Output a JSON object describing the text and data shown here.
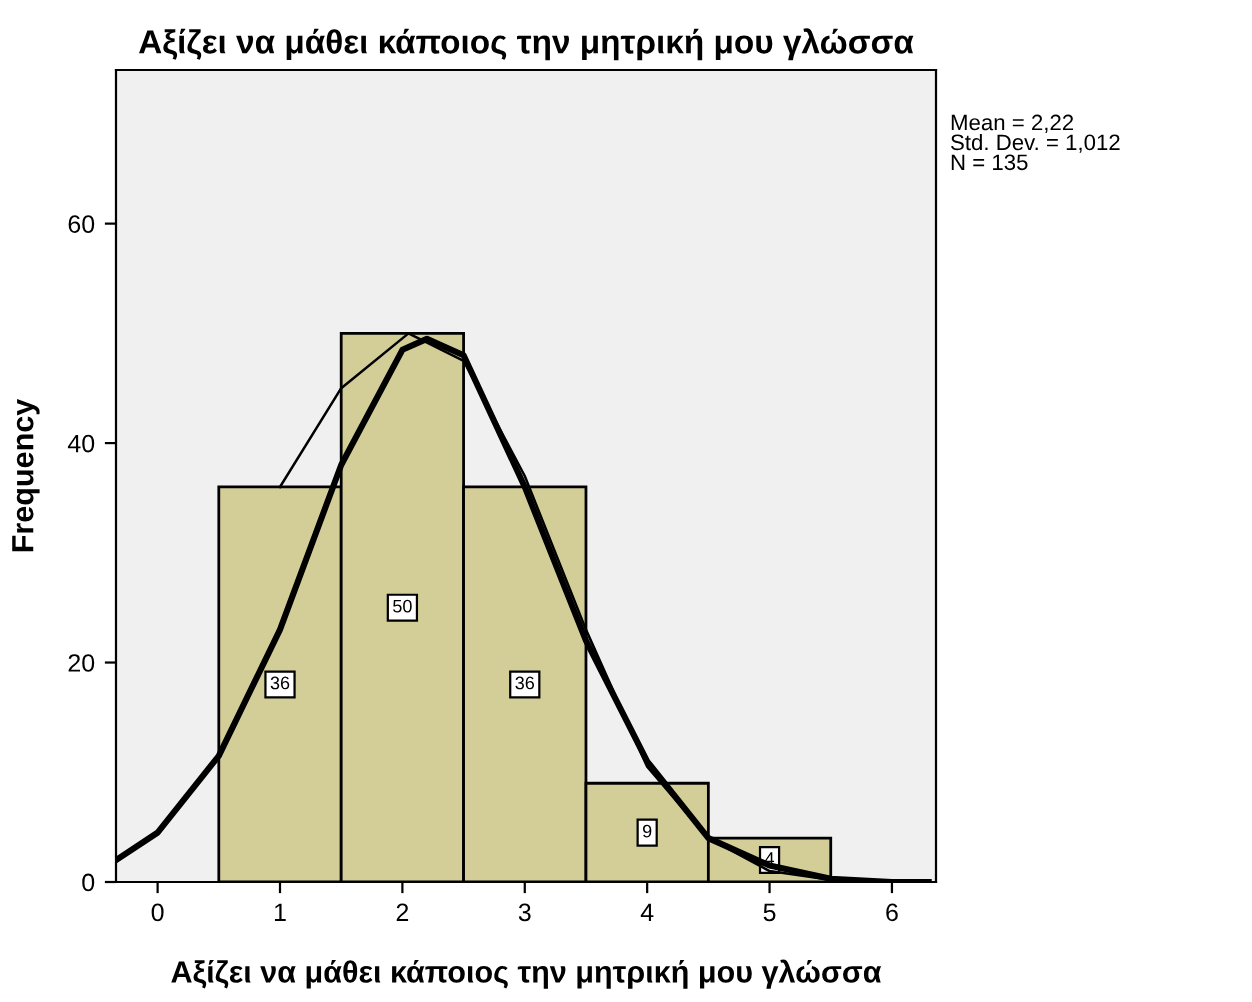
{
  "chart_data": {
    "type": "histogram",
    "title": "Αξίζει να μάθει κάποιος την μητρική μου γλώσσα",
    "xlabel": "Αξίζει να μάθει κάποιος την μητρική μου γλώσσα",
    "ylabel": "Frequency",
    "bins": [
      0.5,
      1.5,
      2.5,
      3.5,
      4.5,
      5.5
    ],
    "values": [
      36,
      50,
      36,
      9,
      4
    ],
    "color": "#d3ce97",
    "value_labels": [
      "36",
      "50",
      "36",
      "9",
      "4"
    ],
    "series": [
      {
        "type": "line",
        "color": "#000000",
        "x": [
          -0.34,
          0,
          0.5,
          1,
          1.5,
          2,
          2.2,
          2.5,
          3,
          3.5,
          4,
          4.5,
          5,
          5.5,
          6,
          6.3
        ],
        "values": [
          2,
          4.5,
          11.5,
          23,
          38,
          48.5,
          49.5,
          48,
          36,
          22,
          11,
          4,
          1.5,
          0.3,
          0,
          0
        ]
      },
      {
        "type": "line",
        "color": "#000000",
        "x": [
          1,
          1.5,
          2.05,
          2.5,
          3,
          3.5,
          4,
          4.5,
          5,
          5.5
        ],
        "values": [
          36,
          45,
          50,
          47.5,
          37,
          23,
          10.5,
          4,
          1,
          0.2
        ]
      }
    ],
    "annotations": [
      "Mean = 2,22\nStd. Dev. = 1,012\nN = 135"
    ],
    "xlim": [
      -0.34,
      6.36
    ],
    "ylim": [
      0,
      74
    ],
    "xticks": [
      0,
      1,
      2,
      3,
      4,
      5,
      6
    ],
    "yticks": [
      0,
      20,
      40,
      60
    ],
    "grid": false,
    "legend": false
  }
}
